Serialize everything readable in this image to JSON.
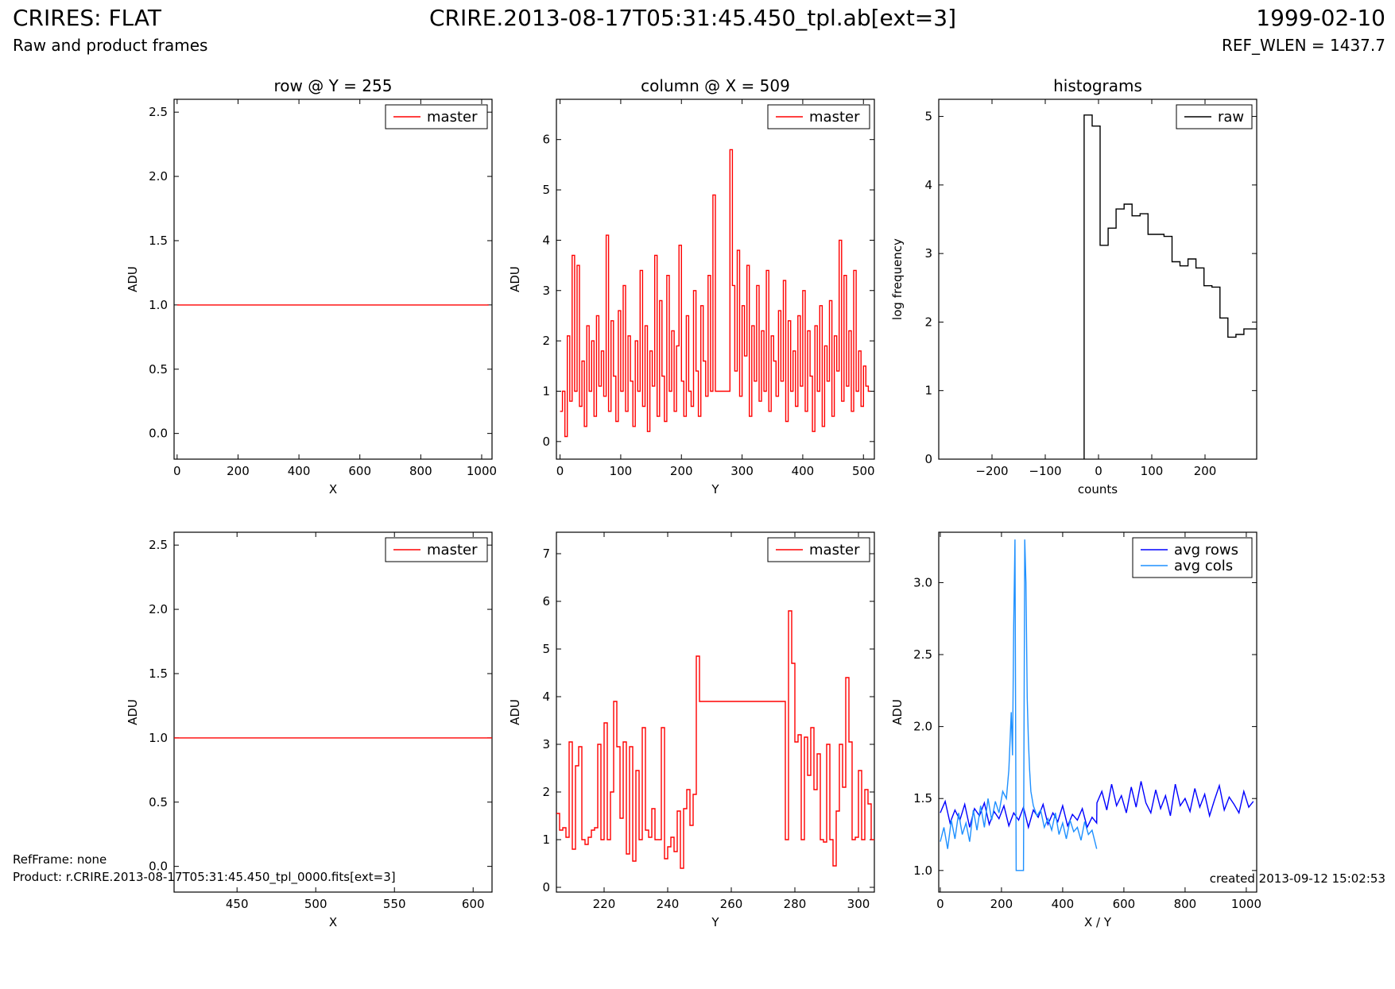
{
  "header": {
    "title_left": "CRIRES: FLAT",
    "subtitle_left": "Raw and product frames",
    "title_center": "CRIRE.2013-08-17T05:31:45.450_tpl.ab[ext=3]",
    "title_right": "1999-02-10",
    "subtitle_right": "REF_WLEN = 1437.7"
  },
  "footer": {
    "ref_frame": "RefFrame: none",
    "product": "Product: r.CRIRE.2013-08-17T05:31:45.450_tpl_0000.fits[ext=3]",
    "created": "created 2013-09-12 15:02:53"
  },
  "colors": {
    "master": "#ff0000",
    "raw": "#000000",
    "avg_rows": "#0000ff",
    "avg_cols": "#1e90ff"
  },
  "chart_data": [
    {
      "type": "line",
      "title": "row @ Y = 255",
      "xlabel": "X",
      "ylabel": "ADU",
      "xlim": [
        -10,
        1034
      ],
      "ylim": [
        -0.2,
        2.6
      ],
      "xticks": [
        0,
        200,
        400,
        600,
        800,
        1000
      ],
      "yticks": [
        0.0,
        0.5,
        1.0,
        1.5,
        2.0,
        2.5
      ],
      "ytick_labels": [
        "0.0",
        "0.5",
        "1.0",
        "1.5",
        "2.0",
        "2.5"
      ],
      "legend": "top-right",
      "series": [
        {
          "name": "master",
          "color": "#ff0000",
          "x": [
            0,
            1023
          ],
          "y": [
            1.0,
            1.0
          ]
        }
      ]
    },
    {
      "type": "line",
      "title": "column @ X = 509",
      "xlabel": "Y",
      "ylabel": "ADU",
      "xlim": [
        -6,
        518
      ],
      "ylim": [
        -0.35,
        6.8
      ],
      "xticks": [
        0,
        100,
        200,
        300,
        400,
        500
      ],
      "yticks": [
        0,
        1,
        2,
        3,
        4,
        5,
        6
      ],
      "legend": "top-right",
      "series": [
        {
          "name": "master",
          "color": "#ff0000",
          "step": true,
          "x": [
            0,
            4,
            8,
            12,
            16,
            20,
            24,
            28,
            32,
            36,
            40,
            44,
            48,
            52,
            56,
            60,
            64,
            68,
            72,
            76,
            80,
            84,
            88,
            92,
            96,
            100,
            104,
            108,
            112,
            116,
            120,
            124,
            128,
            132,
            136,
            140,
            144,
            148,
            152,
            156,
            160,
            164,
            168,
            172,
            176,
            180,
            184,
            188,
            192,
            196,
            200,
            204,
            208,
            212,
            216,
            220,
            224,
            228,
            232,
            236,
            240,
            244,
            248,
            252,
            256,
            260,
            264,
            268,
            272,
            276,
            280,
            284,
            288,
            292,
            296,
            300,
            304,
            308,
            312,
            316,
            320,
            324,
            328,
            332,
            336,
            340,
            344,
            348,
            352,
            356,
            360,
            364,
            368,
            372,
            376,
            380,
            384,
            388,
            392,
            396,
            400,
            404,
            408,
            412,
            416,
            420,
            424,
            428,
            432,
            436,
            440,
            444,
            448,
            452,
            456,
            460,
            464,
            468,
            472,
            476,
            480,
            484,
            488,
            492,
            496,
            500,
            504,
            508,
            511
          ],
          "y": [
            0.6,
            1.0,
            0.1,
            2.1,
            0.8,
            3.7,
            1.0,
            3.5,
            0.7,
            1.6,
            0.3,
            2.3,
            1.0,
            2.0,
            0.5,
            2.5,
            1.1,
            1.8,
            0.9,
            4.1,
            0.6,
            2.4,
            1.3,
            0.4,
            2.6,
            1.0,
            3.1,
            0.6,
            2.1,
            1.2,
            0.3,
            2.0,
            1.0,
            3.4,
            0.7,
            2.3,
            0.2,
            1.8,
            1.1,
            3.7,
            0.5,
            2.8,
            1.3,
            0.4,
            3.3,
            1.0,
            2.2,
            0.6,
            1.9,
            3.9,
            1.2,
            0.5,
            2.5,
            1.0,
            0.7,
            3.0,
            1.4,
            0.5,
            2.7,
            1.6,
            0.9,
            3.3,
            1.0,
            4.9,
            1.0,
            1.0,
            1.0,
            1.0,
            1.0,
            1.0,
            5.8,
            3.1,
            1.4,
            3.8,
            0.9,
            2.7,
            1.7,
            3.5,
            0.5,
            2.3,
            1.2,
            3.1,
            0.8,
            2.2,
            1.0,
            3.4,
            0.6,
            2.1,
            1.6,
            0.9,
            2.6,
            1.2,
            3.2,
            0.4,
            2.4,
            1.0,
            1.8,
            0.7,
            2.5,
            1.1,
            3.0,
            0.6,
            2.2,
            1.3,
            0.2,
            2.3,
            1.0,
            2.7,
            0.3,
            1.9,
            1.2,
            2.8,
            0.5,
            2.1,
            1.4,
            4.0,
            0.8,
            3.3,
            1.1,
            2.2,
            0.6,
            3.4,
            1.0,
            1.8,
            0.7,
            1.5,
            1.1,
            1.0,
            1.0
          ]
        }
      ]
    },
    {
      "type": "line",
      "title": "histograms",
      "xlabel": "counts",
      "ylabel": "log frequency",
      "xlim": [
        -300,
        297
      ],
      "ylim": [
        0,
        5.25
      ],
      "xticks": [
        -200,
        -100,
        0,
        100,
        200
      ],
      "xtick_labels": [
        "−200",
        "−100",
        "0",
        "100",
        "200"
      ],
      "yticks": [
        0,
        1,
        2,
        3,
        4,
        5
      ],
      "legend": "top-right",
      "series": [
        {
          "name": "raw",
          "color": "#000000",
          "histogram": true,
          "edges": [
            -27,
            -12,
            3,
            18,
            33,
            48,
            63,
            78,
            93,
            108,
            123,
            138,
            153,
            168,
            183,
            198,
            213,
            228,
            243,
            258,
            273,
            288,
            297
          ],
          "values": [
            5.02,
            4.86,
            3.12,
            3.37,
            3.65,
            3.72,
            3.55,
            3.58,
            3.28,
            3.28,
            3.25,
            2.88,
            2.82,
            2.92,
            2.79,
            2.53,
            2.51,
            2.06,
            1.78,
            1.82,
            1.9,
            1.9
          ]
        }
      ]
    },
    {
      "type": "line",
      "title": "",
      "xlabel": "X",
      "ylabel": "ADU",
      "xlim": [
        410,
        612
      ],
      "ylim": [
        -0.2,
        2.6
      ],
      "xticks": [
        450,
        500,
        550,
        600
      ],
      "yticks": [
        0.0,
        0.5,
        1.0,
        1.5,
        2.0,
        2.5
      ],
      "ytick_labels": [
        "0.0",
        "0.5",
        "1.0",
        "1.5",
        "2.0",
        "2.5"
      ],
      "legend": "top-right",
      "series": [
        {
          "name": "master",
          "color": "#ff0000",
          "x": [
            410,
            612
          ],
          "y": [
            1.0,
            1.0
          ]
        }
      ]
    },
    {
      "type": "line",
      "title": "",
      "xlabel": "Y",
      "ylabel": "ADU",
      "xlim": [
        205,
        305
      ],
      "ylim": [
        -0.1,
        7.45
      ],
      "xticks": [
        220,
        240,
        260,
        280,
        300
      ],
      "yticks": [
        0,
        1,
        2,
        3,
        4,
        5,
        6,
        7
      ],
      "legend": "top-right",
      "series": [
        {
          "name": "master",
          "color": "#ff0000",
          "step": true,
          "x": [
            205,
            206,
            207,
            208,
            209,
            210,
            211,
            212,
            213,
            214,
            215,
            216,
            217,
            218,
            219,
            220,
            221,
            222,
            223,
            224,
            225,
            226,
            227,
            228,
            229,
            230,
            231,
            232,
            233,
            234,
            235,
            236,
            237,
            238,
            239,
            240,
            241,
            242,
            243,
            244,
            245,
            246,
            247,
            248,
            249,
            250,
            277,
            278,
            279,
            280,
            281,
            282,
            283,
            284,
            285,
            286,
            287,
            288,
            289,
            290,
            291,
            292,
            293,
            294,
            295,
            296,
            297,
            298,
            299,
            300,
            301,
            302,
            303,
            304,
            305
          ],
          "y": [
            1.55,
            1.2,
            1.25,
            1.05,
            3.05,
            0.8,
            2.55,
            2.95,
            1.0,
            0.9,
            1.05,
            1.2,
            1.25,
            3.0,
            1.0,
            3.45,
            1.0,
            2.0,
            3.9,
            2.95,
            1.45,
            3.05,
            0.7,
            2.95,
            0.55,
            2.45,
            1.0,
            3.35,
            1.2,
            1.05,
            1.65,
            1.0,
            1.0,
            3.35,
            0.6,
            0.85,
            1.05,
            0.75,
            1.6,
            0.4,
            1.65,
            2.05,
            1.3,
            1.95,
            4.85,
            3.9,
            1.0,
            5.8,
            4.7,
            3.05,
            3.2,
            1.0,
            3.15,
            2.35,
            3.35,
            2.05,
            2.8,
            1.0,
            0.95,
            3.0,
            1.0,
            0.45,
            1.6,
            3.0,
            2.1,
            4.4,
            3.05,
            1.0,
            1.05,
            2.45,
            1.0,
            2.05,
            1.75,
            1.0,
            1.0
          ]
        }
      ]
    },
    {
      "type": "line",
      "title": "",
      "xlabel": "X / Y",
      "ylabel": "ADU",
      "xlim": [
        -5,
        1034
      ],
      "ylim": [
        0.85,
        3.35
      ],
      "xticks": [
        0,
        200,
        400,
        600,
        800,
        1000
      ],
      "yticks": [
        1.0,
        1.5,
        2.0,
        2.5,
        3.0
      ],
      "ytick_labels": [
        "1.0",
        "1.5",
        "2.0",
        "2.5",
        "3.0"
      ],
      "legend": "top-right",
      "series": [
        {
          "name": "avg rows",
          "color": "#0000ff",
          "x": [
            0,
            16,
            32,
            48,
            64,
            80,
            96,
            112,
            128,
            144,
            160,
            176,
            192,
            208,
            224,
            240,
            256,
            272,
            288,
            304,
            320,
            336,
            352,
            368,
            384,
            400,
            416,
            432,
            448,
            464,
            480,
            496,
            511,
            512,
            528,
            544,
            560,
            576,
            592,
            608,
            624,
            640,
            656,
            672,
            688,
            704,
            720,
            736,
            752,
            768,
            784,
            800,
            816,
            832,
            848,
            864,
            880,
            896,
            912,
            928,
            944,
            960,
            976,
            992,
            1008,
            1023
          ],
          "y": [
            1.4,
            1.48,
            1.33,
            1.42,
            1.35,
            1.46,
            1.3,
            1.43,
            1.38,
            1.47,
            1.32,
            1.41,
            1.36,
            1.45,
            1.31,
            1.4,
            1.35,
            1.44,
            1.3,
            1.42,
            1.37,
            1.46,
            1.32,
            1.4,
            1.34,
            1.45,
            1.31,
            1.39,
            1.35,
            1.43,
            1.3,
            1.37,
            1.33,
            1.47,
            1.55,
            1.42,
            1.6,
            1.45,
            1.52,
            1.4,
            1.58,
            1.44,
            1.62,
            1.47,
            1.4,
            1.56,
            1.43,
            1.52,
            1.38,
            1.6,
            1.45,
            1.5,
            1.41,
            1.57,
            1.44,
            1.53,
            1.38,
            1.49,
            1.59,
            1.42,
            1.51,
            1.46,
            1.4,
            1.55,
            1.44,
            1.48
          ]
        },
        {
          "name": "avg cols",
          "color": "#1e90ff",
          "x": [
            0,
            12,
            24,
            36,
            48,
            60,
            72,
            84,
            96,
            108,
            120,
            132,
            144,
            156,
            168,
            180,
            192,
            204,
            216,
            224,
            232,
            236,
            240,
            244,
            248,
            252,
            256,
            264,
            272,
            276,
            280,
            284,
            288,
            292,
            296,
            304,
            316,
            328,
            340,
            352,
            364,
            376,
            388,
            400,
            412,
            424,
            436,
            448,
            460,
            472,
            484,
            496,
            511
          ],
          "y": [
            1.2,
            1.3,
            1.15,
            1.35,
            1.22,
            1.4,
            1.25,
            1.33,
            1.2,
            1.42,
            1.28,
            1.45,
            1.3,
            1.5,
            1.35,
            1.48,
            1.4,
            1.55,
            1.5,
            1.7,
            2.1,
            1.8,
            2.7,
            3.3,
            1.0,
            1.0,
            1.0,
            1.0,
            1.0,
            3.3,
            3.0,
            2.2,
            1.9,
            1.7,
            1.55,
            1.45,
            1.38,
            1.42,
            1.3,
            1.36,
            1.28,
            1.4,
            1.25,
            1.33,
            1.22,
            1.35,
            1.27,
            1.3,
            1.21,
            1.34,
            1.25,
            1.28,
            1.15
          ]
        }
      ]
    }
  ]
}
